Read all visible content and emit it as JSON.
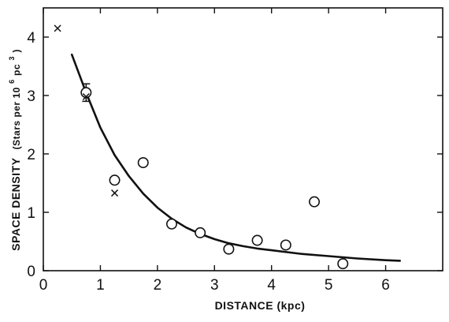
{
  "chart_data": {
    "type": "scatter",
    "title": "",
    "xlabel": "DISTANCE  (kpc)",
    "ylabel_main": "SPACE DENSITY",
    "ylabel_unit": "(Stars per 10",
    "ylabel_exp6": "6",
    "ylabel_pc": "pc",
    "ylabel_exp3": "3",
    "ylabel_close": ")",
    "xlim": [
      0,
      7
    ],
    "ylim": [
      0,
      4.5
    ],
    "x_ticks": [
      0,
      1,
      2,
      3,
      4,
      5,
      6
    ],
    "x_tick_labels": [
      "0",
      "1",
      "2",
      "3",
      "4",
      "5",
      "6"
    ],
    "y_ticks": [
      0,
      1,
      2,
      3,
      4
    ],
    "y_tick_labels": [
      "0",
      "1",
      "2",
      "3",
      "4"
    ],
    "series": [
      {
        "marker": "circle",
        "x": [
          0.75,
          1.25,
          1.75,
          2.25,
          2.75,
          3.25,
          3.75,
          4.25,
          4.75,
          5.25
        ],
        "y": [
          3.05,
          1.55,
          1.85,
          0.8,
          0.65,
          0.37,
          0.52,
          0.44,
          1.18,
          0.12
        ]
      },
      {
        "marker": "x",
        "x": [
          0.25,
          0.75,
          1.25
        ],
        "y": [
          4.15,
          2.98,
          1.33
        ]
      },
      {
        "marker": "line",
        "x": [
          0.5,
          0.75,
          1.0,
          1.25,
          1.5,
          1.75,
          2.0,
          2.25,
          2.5,
          2.75,
          3.0,
          3.25,
          3.5,
          3.75,
          4.0,
          4.5,
          5.0,
          5.5,
          6.0,
          6.25
        ],
        "y": [
          3.7,
          3.05,
          2.45,
          1.98,
          1.62,
          1.32,
          1.08,
          0.89,
          0.74,
          0.63,
          0.54,
          0.47,
          0.42,
          0.38,
          0.35,
          0.29,
          0.25,
          0.21,
          0.18,
          0.17
        ]
      }
    ],
    "error_bars": [
      {
        "x": 0.75,
        "y_low": 2.9,
        "y_high": 3.2
      }
    ]
  }
}
